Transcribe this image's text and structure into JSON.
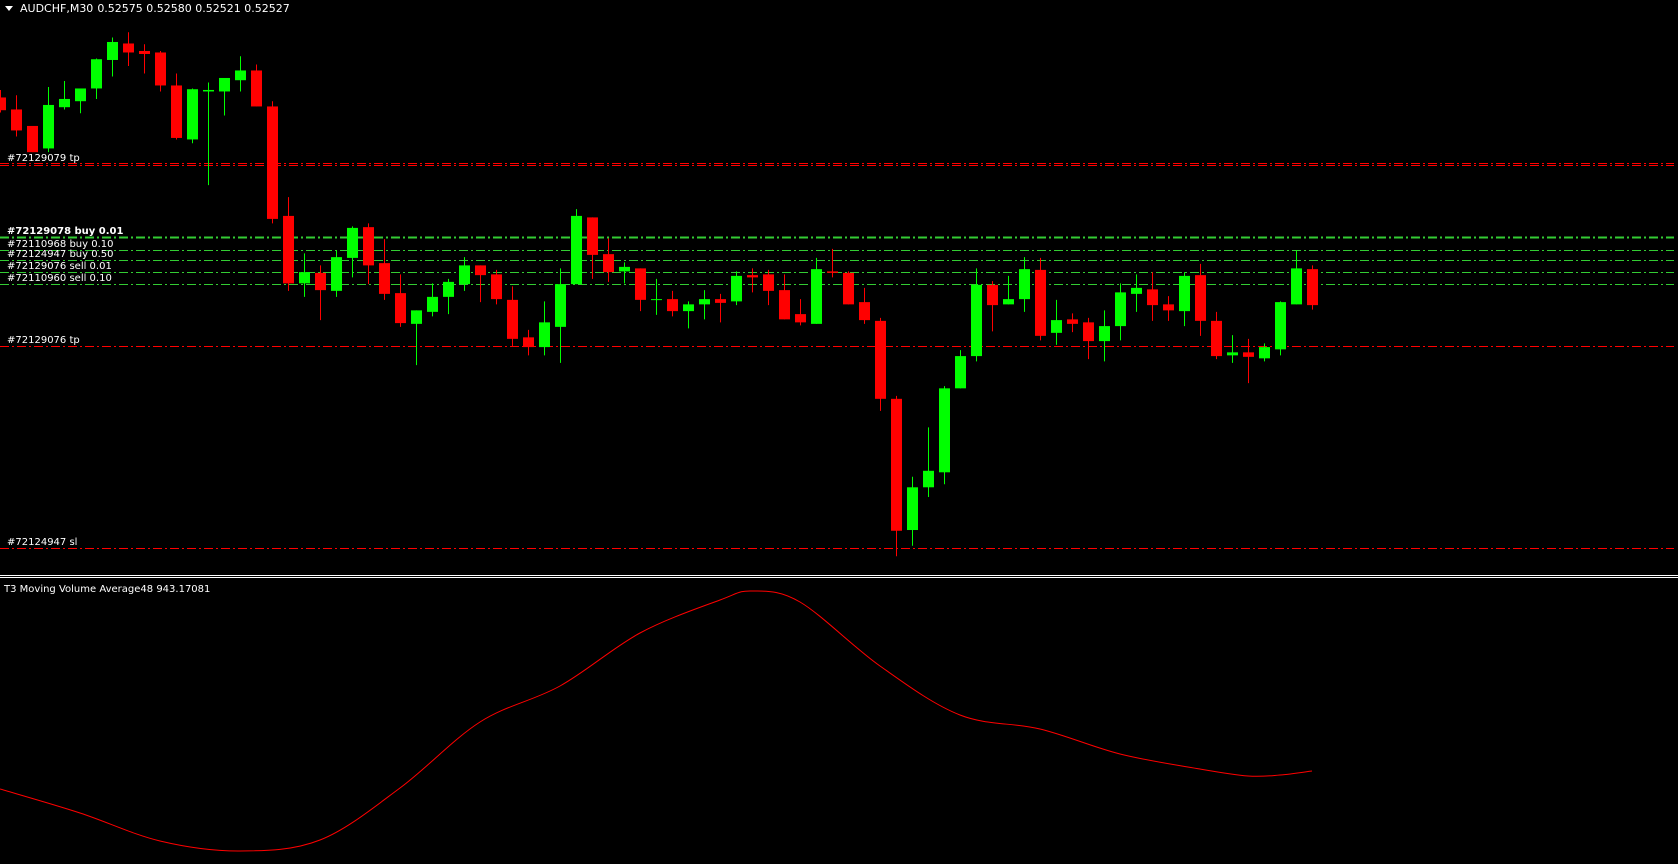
{
  "header": {
    "symbol": "AUDCHF,M30",
    "ohlc": "0.52575 0.52580 0.52521 0.52527"
  },
  "colors": {
    "background": "#000000",
    "bull": "#00ff00",
    "bear": "#ff0000",
    "buy_line": "#33cc33",
    "stop_line": "#ff0000",
    "indicator": "#ff0000",
    "separator": "#ffffff"
  },
  "order_lines": [
    {
      "label": "#72129079 tp",
      "price": 0.52715,
      "kind": "tp",
      "double": true
    },
    {
      "label": "#72129078 buy 0.01",
      "price": 0.52618,
      "kind": "entry",
      "bold": true
    },
    {
      "label": "#72110968 buy 0.10",
      "price": 0.526,
      "kind": "entry"
    },
    {
      "label": "#72124947 buy 0.50",
      "price": 0.52587,
      "kind": "entry"
    },
    {
      "label": "#72129076 sell 0.01",
      "price": 0.52571,
      "kind": "entry"
    },
    {
      "label": "#72110960 sell 0.10",
      "price": 0.52555,
      "kind": "entry"
    },
    {
      "label": "#72129076 tp",
      "price": 0.52472,
      "kind": "tp"
    },
    {
      "label": "#72124947 sl",
      "price": 0.52203,
      "kind": "sl"
    }
  ],
  "indicator": {
    "name": "T3 Moving Volume Average48",
    "value": "943.17081"
  },
  "chart_data": [
    {
      "type": "candlestick",
      "title": "AUDCHF,M30",
      "ylim": [
        0.52167,
        0.52934
      ],
      "fields": [
        "open",
        "high",
        "low",
        "close"
      ],
      "candles": [
        [
          0.52804,
          0.52814,
          0.52784,
          0.52787
        ],
        [
          0.52788,
          0.52807,
          0.52752,
          0.5276
        ],
        [
          0.52766,
          0.52766,
          0.52731,
          0.52731
        ],
        [
          0.52736,
          0.52818,
          0.52731,
          0.52794
        ],
        [
          0.52791,
          0.52826,
          0.52788,
          0.52802
        ],
        [
          0.52799,
          0.52816,
          0.52783,
          0.52816
        ],
        [
          0.52816,
          0.52856,
          0.52802,
          0.52855
        ],
        [
          0.52854,
          0.52884,
          0.52832,
          0.52878
        ],
        [
          0.52876,
          0.52891,
          0.52846,
          0.52864
        ],
        [
          0.52866,
          0.52875,
          0.52836,
          0.52862
        ],
        [
          0.52864,
          0.52866,
          0.52812,
          0.5282
        ],
        [
          0.5282,
          0.52836,
          0.52748,
          0.5275
        ],
        [
          0.52748,
          0.52816,
          0.52743,
          0.52815
        ],
        [
          0.52812,
          0.52824,
          0.52687,
          0.52814
        ],
        [
          0.52812,
          0.5283,
          0.5278,
          0.5283
        ],
        [
          0.52827,
          0.52859,
          0.52812,
          0.5284
        ],
        [
          0.5284,
          0.52848,
          0.52792,
          0.52792
        ],
        [
          0.52792,
          0.52799,
          0.52636,
          0.52642
        ],
        [
          0.52646,
          0.52671,
          0.52546,
          0.52556
        ],
        [
          0.52556,
          0.52596,
          0.52538,
          0.52571
        ],
        [
          0.5257,
          0.5258,
          0.52507,
          0.52547
        ],
        [
          0.52546,
          0.526,
          0.52538,
          0.52591
        ],
        [
          0.5259,
          0.52632,
          0.52564,
          0.5263
        ],
        [
          0.52631,
          0.52636,
          0.52555,
          0.5258
        ],
        [
          0.52583,
          0.52615,
          0.52534,
          0.52542
        ],
        [
          0.52543,
          0.52568,
          0.52498,
          0.52503
        ],
        [
          0.52502,
          0.5252,
          0.52447,
          0.5252
        ],
        [
          0.52518,
          0.52556,
          0.52512,
          0.52538
        ],
        [
          0.52538,
          0.52562,
          0.52515,
          0.52558
        ],
        [
          0.52555,
          0.52591,
          0.52546,
          0.5258
        ],
        [
          0.5258,
          0.5258,
          0.52531,
          0.52567
        ],
        [
          0.52568,
          0.52574,
          0.52528,
          0.52535
        ],
        [
          0.52534,
          0.52552,
          0.52472,
          0.52482
        ],
        [
          0.52484,
          0.52494,
          0.5246,
          0.52471
        ],
        [
          0.52471,
          0.52532,
          0.5246,
          0.52504
        ],
        [
          0.52498,
          0.52576,
          0.5245,
          0.52555
        ],
        [
          0.52555,
          0.52655,
          0.52555,
          0.52646
        ],
        [
          0.52644,
          0.52644,
          0.52562,
          0.52594
        ],
        [
          0.52595,
          0.52616,
          0.52558,
          0.52571
        ],
        [
          0.52572,
          0.52584,
          0.52556,
          0.52578
        ],
        [
          0.52576,
          0.52576,
          0.52519,
          0.52534
        ],
        [
          0.52534,
          0.52562,
          0.52514,
          0.52535
        ],
        [
          0.52535,
          0.52546,
          0.52512,
          0.52519
        ],
        [
          0.52519,
          0.52532,
          0.52496,
          0.52528
        ],
        [
          0.52528,
          0.52547,
          0.52508,
          0.52535
        ],
        [
          0.52535,
          0.52542,
          0.52504,
          0.5253
        ],
        [
          0.52532,
          0.52572,
          0.52527,
          0.52566
        ],
        [
          0.52567,
          0.52576,
          0.52544,
          0.52564
        ],
        [
          0.52568,
          0.52574,
          0.52527,
          0.52546
        ],
        [
          0.52547,
          0.52568,
          0.52508,
          0.52508
        ],
        [
          0.52515,
          0.52535,
          0.525,
          0.52504
        ],
        [
          0.52502,
          0.5259,
          0.52502,
          0.52575
        ],
        [
          0.52572,
          0.52602,
          0.52564,
          0.5257
        ],
        [
          0.5257,
          0.52572,
          0.52528,
          0.52528
        ],
        [
          0.52531,
          0.5255,
          0.52502,
          0.52507
        ],
        [
          0.52506,
          0.5251,
          0.52386,
          0.52402
        ],
        [
          0.52402,
          0.52406,
          0.52192,
          0.52226
        ],
        [
          0.52227,
          0.52298,
          0.52206,
          0.52284
        ],
        [
          0.52284,
          0.52364,
          0.52271,
          0.52306
        ],
        [
          0.52304,
          0.52419,
          0.52288,
          0.52416
        ],
        [
          0.52416,
          0.52467,
          0.52416,
          0.52459
        ],
        [
          0.52459,
          0.52576,
          0.52452,
          0.52554
        ],
        [
          0.52554,
          0.52559,
          0.52492,
          0.52527
        ],
        [
          0.52528,
          0.52566,
          0.52528,
          0.52535
        ],
        [
          0.52535,
          0.52591,
          0.52518,
          0.52575
        ],
        [
          0.52574,
          0.5259,
          0.5248,
          0.52486
        ],
        [
          0.5249,
          0.52534,
          0.52474,
          0.52507
        ],
        [
          0.52508,
          0.52516,
          0.52491,
          0.52502
        ],
        [
          0.52504,
          0.5251,
          0.52455,
          0.52479
        ],
        [
          0.52479,
          0.5252,
          0.52452,
          0.52499
        ],
        [
          0.52499,
          0.52556,
          0.5248,
          0.52544
        ],
        [
          0.52542,
          0.52568,
          0.52518,
          0.5255
        ],
        [
          0.52548,
          0.52571,
          0.52506,
          0.52527
        ],
        [
          0.52528,
          0.52539,
          0.52506,
          0.5252
        ],
        [
          0.52519,
          0.52571,
          0.52499,
          0.52566
        ],
        [
          0.52567,
          0.52582,
          0.52486,
          0.52506
        ],
        [
          0.52506,
          0.52518,
          0.52455,
          0.52459
        ],
        [
          0.5246,
          0.52487,
          0.5245,
          0.52464
        ],
        [
          0.52464,
          0.52482,
          0.52423,
          0.52458
        ],
        [
          0.52456,
          0.52476,
          0.52452,
          0.52471
        ],
        [
          0.52468,
          0.52532,
          0.5246,
          0.52531
        ],
        [
          0.52528,
          0.526,
          0.52528,
          0.52576
        ],
        [
          0.52575,
          0.5258,
          0.52521,
          0.52527
        ]
      ]
    },
    {
      "type": "line",
      "title": "T3 Moving Volume Average48",
      "ylim": [
        478,
        1888
      ],
      "x": [
        0,
        5,
        10,
        15,
        20,
        25,
        30,
        35,
        40,
        45,
        47,
        50,
        55,
        60,
        65,
        70,
        75,
        78,
        80,
        82
      ],
      "values": [
        853,
        733,
        593,
        543,
        598,
        858,
        1188,
        1368,
        1633,
        1798,
        1843,
        1788,
        1468,
        1223,
        1153,
        1028,
        953,
        918,
        923,
        943.17081
      ]
    }
  ]
}
